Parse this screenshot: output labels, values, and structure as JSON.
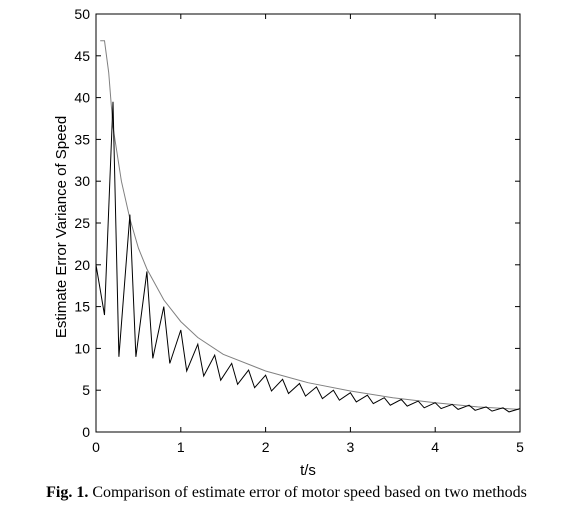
{
  "caption": {
    "label": "Fig. 1.",
    "text": "Comparison of estimate error of motor speed based on two methods"
  },
  "chart_data": {
    "type": "line",
    "xlabel": "t/s",
    "ylabel": "Estimate Error Variance of Speed",
    "xlim": [
      0,
      5
    ],
    "ylim": [
      0,
      50
    ],
    "xticks": [
      0,
      1,
      2,
      3,
      4,
      5
    ],
    "yticks": [
      0,
      5,
      10,
      15,
      20,
      25,
      30,
      35,
      40,
      45,
      50
    ],
    "grid": false,
    "series": [
      {
        "color": "#808080",
        "x": [
          0.05,
          0.1,
          0.15,
          0.2,
          0.3,
          0.4,
          0.5,
          0.6,
          0.8,
          1.0,
          1.2,
          1.5,
          2.0,
          2.5,
          3.0,
          3.5,
          4.0,
          4.5,
          5.0
        ],
        "y": [
          46.8,
          46.8,
          43.0,
          36.5,
          30.0,
          25.5,
          22.0,
          19.5,
          15.8,
          13.2,
          11.3,
          9.3,
          7.3,
          5.9,
          4.9,
          4.1,
          3.5,
          3.0,
          2.7
        ]
      },
      {
        "color": "#000000",
        "x": [
          0.0,
          0.1,
          0.2,
          0.27,
          0.4,
          0.47,
          0.6,
          0.67,
          0.8,
          0.87,
          1.0,
          1.07,
          1.2,
          1.27,
          1.4,
          1.47,
          1.6,
          1.67,
          1.8,
          1.87,
          2.0,
          2.07,
          2.2,
          2.27,
          2.4,
          2.47,
          2.6,
          2.67,
          2.8,
          2.87,
          3.0,
          3.07,
          3.2,
          3.27,
          3.4,
          3.47,
          3.6,
          3.67,
          3.8,
          3.87,
          4.0,
          4.07,
          4.2,
          4.27,
          4.4,
          4.47,
          4.6,
          4.67,
          4.8,
          4.87,
          5.0
        ],
        "y": [
          20.0,
          14.0,
          39.5,
          9.0,
          26.0,
          9.0,
          19.2,
          8.8,
          15.0,
          8.2,
          12.2,
          7.3,
          10.5,
          6.7,
          9.2,
          6.2,
          8.2,
          5.7,
          7.4,
          5.3,
          6.8,
          4.9,
          6.3,
          4.6,
          5.8,
          4.3,
          5.4,
          4.0,
          5.0,
          3.8,
          4.7,
          3.6,
          4.4,
          3.4,
          4.1,
          3.2,
          3.9,
          3.1,
          3.7,
          2.9,
          3.5,
          2.8,
          3.3,
          2.7,
          3.2,
          2.6,
          3.0,
          2.5,
          2.9,
          2.4,
          2.8
        ]
      }
    ]
  }
}
